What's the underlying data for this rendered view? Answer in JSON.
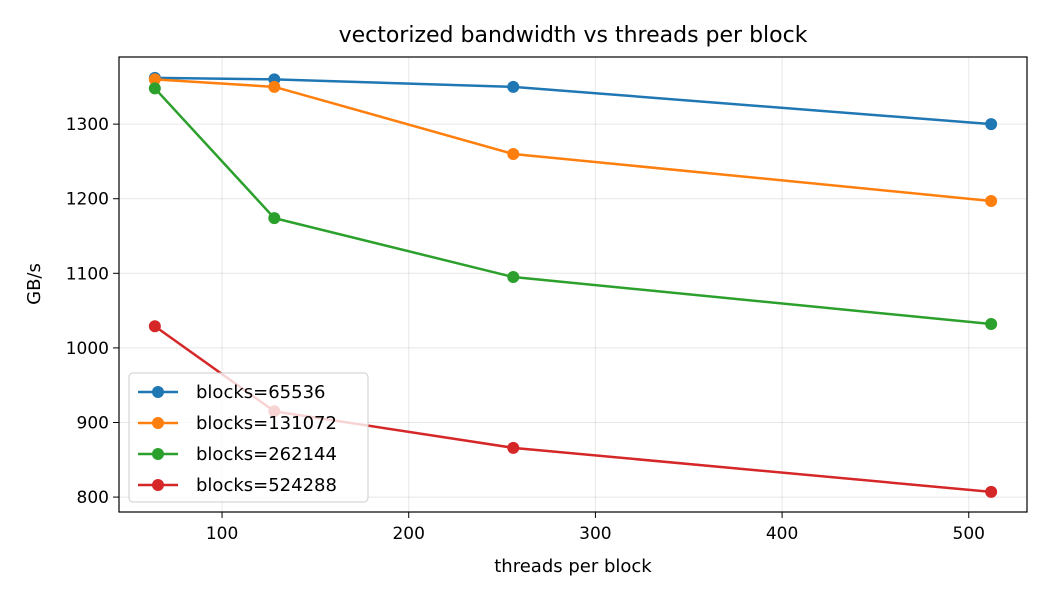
{
  "chart_data": {
    "type": "line",
    "title": "vectorized bandwidth vs threads per block",
    "xlabel": "threads per block",
    "ylabel": "GB/s",
    "xlim": [
      44.8,
      531.2
    ],
    "ylim": [
      780,
      1390
    ],
    "xticks": [
      100,
      200,
      300,
      400,
      500
    ],
    "yticks": [
      800,
      900,
      1000,
      1100,
      1200,
      1300
    ],
    "grid": true,
    "legend_position": "lower-left",
    "x": [
      64,
      128,
      256,
      512
    ],
    "series": [
      {
        "name": "blocks=65536",
        "color": "#1f77b4",
        "values": [
          1362,
          1360,
          1350,
          1300
        ]
      },
      {
        "name": "blocks=131072",
        "color": "#ff7f0e",
        "values": [
          1360,
          1350,
          1260,
          1197
        ]
      },
      {
        "name": "blocks=262144",
        "color": "#2ca02c",
        "values": [
          1348,
          1174,
          1095,
          1032
        ]
      },
      {
        "name": "blocks=524288",
        "color": "#d62728",
        "values": [
          1029,
          915,
          866,
          807
        ]
      }
    ]
  }
}
